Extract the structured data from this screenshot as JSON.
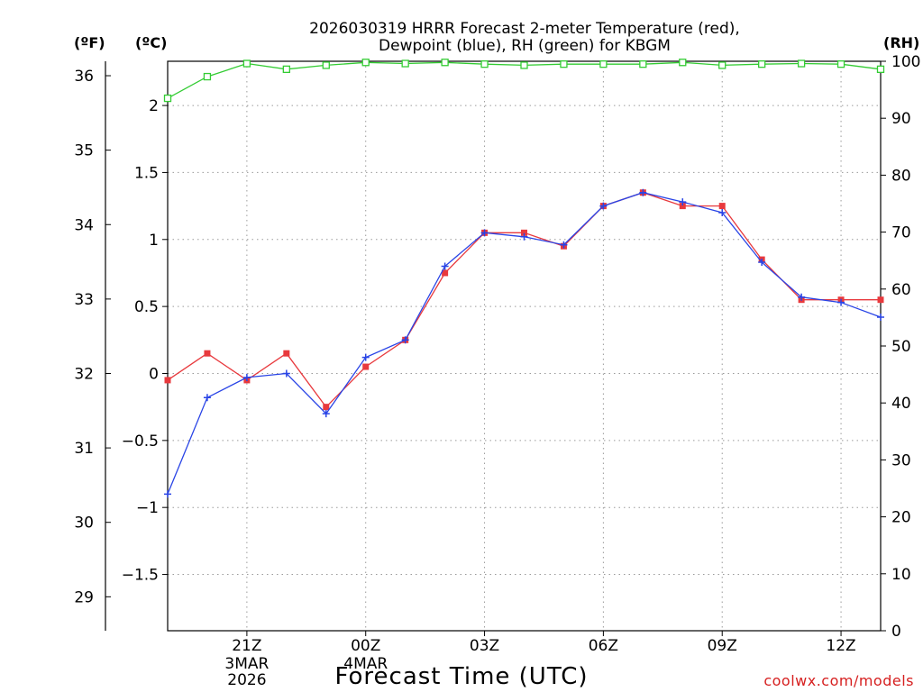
{
  "chart_data": {
    "type": "line",
    "title_lines": [
      "2026030319 HRRR Forecast 2-meter Temperature (red),",
      "Dewpoint (blue), RH (green) for KBGM"
    ],
    "unit_labels": {
      "fahrenheit": "(ºF)",
      "celsius": "(ºC)",
      "rh": "(RH)"
    },
    "xlabel": "Forecast Time (UTC)",
    "credit": "coolwx.com/models",
    "x_hours": [
      0,
      1,
      2,
      3,
      4,
      5,
      6,
      7,
      8,
      9,
      10,
      11,
      12,
      13,
      14,
      15,
      16,
      17,
      18
    ],
    "x_ticks": [
      {
        "hour": 2,
        "label": "21Z",
        "sub": [
          "3MAR",
          "2026"
        ]
      },
      {
        "hour": 5,
        "label": "00Z",
        "sub": [
          "4MAR"
        ]
      },
      {
        "hour": 8,
        "label": "03Z",
        "sub": []
      },
      {
        "hour": 11,
        "label": "06Z",
        "sub": []
      },
      {
        "hour": 14,
        "label": "09Z",
        "sub": []
      },
      {
        "hour": 17,
        "label": "12Z",
        "sub": []
      }
    ],
    "xlim": [
      0,
      18
    ],
    "celsius_axis": {
      "ylim": [
        -1.92,
        2.33
      ],
      "ticks": [
        -1.5,
        -1,
        -0.5,
        0,
        0.5,
        1,
        1.5,
        2
      ],
      "tick_labels": [
        "−1.5",
        "−1",
        "−0.5",
        "0",
        "0.5",
        "1",
        "1.5",
        "2"
      ]
    },
    "fahrenheit_axis": {
      "ticks": [
        29,
        30,
        31,
        32,
        33,
        34,
        35,
        36
      ],
      "tick_labels": [
        "29",
        "30",
        "31",
        "32",
        "33",
        "34",
        "35",
        "36"
      ]
    },
    "rh_axis": {
      "ylim": [
        0,
        100
      ],
      "ticks": [
        0,
        10,
        20,
        30,
        40,
        50,
        60,
        70,
        80,
        90,
        100
      ],
      "tick_labels": [
        "0",
        "10",
        "20",
        "30",
        "40",
        "50",
        "60",
        "70",
        "80",
        "90",
        "100"
      ]
    },
    "series": [
      {
        "name": "Temperature",
        "axis": "celsius",
        "color": "#e8393d",
        "marker": "filled-square",
        "values": [
          -0.05,
          0.15,
          -0.05,
          0.15,
          -0.25,
          0.05,
          0.25,
          0.75,
          1.05,
          1.05,
          0.95,
          1.25,
          1.35,
          1.25,
          1.25,
          0.85,
          0.55,
          0.55,
          0.55
        ]
      },
      {
        "name": "Dewpoint",
        "axis": "celsius",
        "color": "#2944e6",
        "marker": "plus",
        "values": [
          -0.9,
          -0.18,
          -0.03,
          0.0,
          -0.3,
          0.12,
          0.25,
          0.8,
          1.05,
          1.02,
          0.96,
          1.25,
          1.35,
          1.28,
          1.2,
          0.83,
          0.57,
          0.53,
          0.42
        ]
      },
      {
        "name": "RH",
        "axis": "rh",
        "color": "#33cc33",
        "marker": "open-square",
        "values": [
          93.5,
          97.3,
          99.6,
          98.6,
          99.3,
          99.8,
          99.6,
          99.8,
          99.5,
          99.3,
          99.5,
          99.5,
          99.5,
          99.8,
          99.3,
          99.5,
          99.6,
          99.5,
          98.6
        ]
      }
    ]
  }
}
